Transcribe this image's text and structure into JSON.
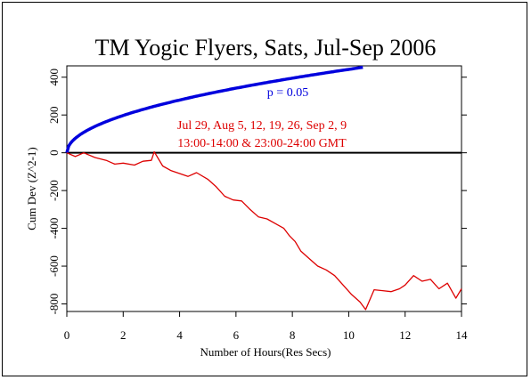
{
  "chart_data": {
    "type": "line",
    "title": "TM Yogic Flyers, Sats, Jul-Sep 2006",
    "xlabel": "Number of Hours(Res Secs)",
    "ylabel": "Cum Dev (Z^2-1)",
    "xlim": [
      0,
      14
    ],
    "ylim": [
      -840,
      460
    ],
    "x_ticks": [
      "0",
      "2",
      "4",
      "6",
      "8",
      "10",
      "12",
      "14"
    ],
    "y_ticks": [
      "-800",
      "-600",
      "-400",
      "-200",
      "0",
      "200",
      "400"
    ],
    "grid": false,
    "annotations": {
      "p_label": "p = 0.05",
      "dates_line1": "Jul 29, Aug 5, 12, 19, 26, Sep 2, 9",
      "dates_line2": "13:00-14:00 & 23:00-24:00 GMT"
    },
    "series": [
      {
        "role": "p-envelope",
        "color": "#0000dd",
        "formula": "1.645*sqrt(2*3600*x)",
        "x": [
          0,
          0.1,
          0.25,
          0.5,
          1,
          1.5,
          2,
          3,
          4,
          5,
          6,
          7,
          8,
          9,
          10,
          10.5
        ],
        "values": [
          0,
          44,
          70,
          99,
          140,
          171,
          197,
          242,
          279,
          312,
          342,
          369,
          395,
          419,
          441,
          452
        ]
      },
      {
        "role": "cumulative-deviation",
        "color": "#dd0000",
        "x": [
          0,
          0.3,
          0.6,
          1.0,
          1.4,
          1.7,
          2.0,
          2.4,
          2.7,
          3.0,
          3.1,
          3.4,
          3.7,
          4.0,
          4.3,
          4.6,
          5.0,
          5.3,
          5.6,
          5.9,
          6.2,
          6.5,
          6.8,
          7.1,
          7.4,
          7.7,
          7.9,
          8.1,
          8.3,
          8.6,
          8.9,
          9.2,
          9.5,
          9.8,
          10.1,
          10.4,
          10.6,
          10.9,
          11.2,
          11.5,
          11.8,
          12.0,
          12.3,
          12.6,
          12.9,
          13.2,
          13.5,
          13.8,
          14.0
        ],
        "values": [
          0,
          -20,
          0,
          -25,
          -40,
          -60,
          -55,
          -65,
          -45,
          -40,
          5,
          -70,
          -95,
          -110,
          -125,
          -105,
          -140,
          -180,
          -230,
          -250,
          -255,
          -300,
          -340,
          -350,
          -375,
          -400,
          -440,
          -470,
          -520,
          -560,
          -600,
          -620,
          -650,
          -700,
          -750,
          -790,
          -830,
          -725,
          -730,
          -735,
          -720,
          -700,
          -650,
          -680,
          -670,
          -720,
          -690,
          -770,
          -720
        ]
      }
    ]
  }
}
